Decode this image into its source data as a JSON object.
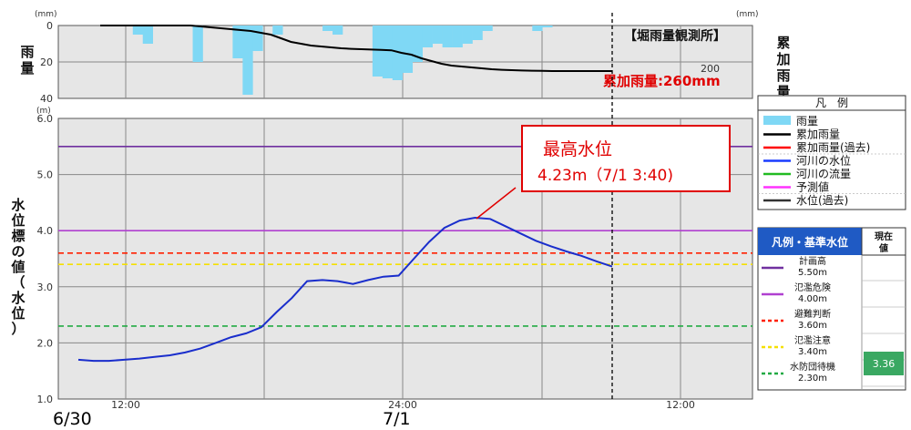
{
  "chart_data": [
    {
      "type": "bar",
      "name_jp": "rain",
      "ylabel": "雨量",
      "unit_left": "(mm)",
      "unit_right": "(mm)",
      "y2label": "累加雨量",
      "ylim": [
        0,
        40
      ],
      "y_ticks": [
        "0",
        "20",
        "40"
      ],
      "y2_ticks": [
        "200"
      ],
      "station": "【堀雨量観測所】",
      "cumulative_total": "累加雨量:260mm",
      "hourly_rain": [
        0,
        0,
        0,
        0,
        0,
        0,
        5,
        10,
        0,
        0,
        0,
        0,
        20,
        0,
        0,
        0,
        18,
        38,
        14,
        0,
        5,
        0,
        0,
        0,
        0,
        3,
        5,
        0,
        0,
        0,
        28,
        29,
        30,
        26,
        20,
        12,
        10,
        12,
        12,
        10,
        8,
        3,
        0,
        0,
        0,
        0,
        3,
        1,
        0,
        0,
        0,
        0,
        0,
        0
      ],
      "cumulative": [
        0,
        0,
        0,
        0,
        0,
        0,
        0,
        0,
        0,
        0,
        0.5,
        1,
        1.5,
        2,
        2.5,
        3,
        4,
        5,
        7,
        9,
        10,
        11,
        11.5,
        12,
        12.5,
        12.8,
        13,
        13.2,
        13.4,
        13.6,
        15,
        16,
        18,
        19.5,
        21,
        22,
        22.5,
        23,
        23.5,
        24,
        24.3,
        24.5,
        24.7,
        24.8,
        24.9,
        25,
        25,
        25,
        25,
        25,
        25,
        25
      ]
    },
    {
      "type": "line",
      "ylabel": "水位標の値（水位）",
      "unit": "(m)",
      "ylim": [
        1.0,
        6.0
      ],
      "y_ticks": [
        "1.0",
        "2.0",
        "3.0",
        "4.0",
        "5.0",
        "6.0"
      ],
      "x_ticks": [
        "12:00",
        "24:00",
        "12:00"
      ],
      "x_dates": [
        "6/30",
        "7/1"
      ],
      "water_level": [
        1.7,
        1.68,
        1.68,
        1.7,
        1.72,
        1.75,
        1.78,
        1.83,
        1.9,
        2.0,
        2.1,
        2.17,
        2.28,
        2.55,
        2.8,
        3.1,
        3.12,
        3.1,
        3.05,
        3.12,
        3.18,
        3.2,
        3.5,
        3.8,
        4.05,
        4.18,
        4.23,
        4.21,
        4.08,
        3.95,
        3.82,
        3.72,
        3.63,
        3.55,
        3.45,
        3.36
      ],
      "reference_levels": [
        {
          "label": "計画高",
          "value_label": "5.50m",
          "value": 5.5,
          "color": "#7030a0"
        },
        {
          "label": "氾濫危険",
          "value_label": "4.00m",
          "value": 4.0,
          "color": "#b040d0"
        },
        {
          "label": "避難判断",
          "value_label": "3.60m",
          "value": 3.6,
          "color": "#ff2000"
        },
        {
          "label": "氾濫注意",
          "value_label": "3.40m",
          "value": 3.4,
          "color": "#f5e000"
        },
        {
          "label": "水防団待機",
          "value_label": "2.30m",
          "value": 2.3,
          "color": "#22aa44"
        }
      ],
      "peak_title": "最高水位",
      "peak_value": "4.23m（7/1 3:40)",
      "current_value": "3.36"
    }
  ],
  "legend": {
    "title": "凡　例",
    "items": [
      {
        "label": "雨量",
        "color": "#7fd8f5",
        "style": "box"
      },
      {
        "label": "累加雨量",
        "color": "#000000",
        "style": "line"
      },
      {
        "label": "累加雨量(過去)",
        "color": "#ff0000",
        "style": "line"
      },
      {
        "label": "河川の水位",
        "color": "#1a3cff",
        "style": "line"
      },
      {
        "label": "河川の流量",
        "color": "#22bb22",
        "style": "line"
      },
      {
        "label": "予測値",
        "color": "#ff33ff",
        "style": "line"
      },
      {
        "label": "水位(過去)",
        "color": "#333333",
        "style": "line"
      }
    ]
  },
  "ref_table": {
    "header": "凡例・基準水位",
    "current_header": "現在値"
  },
  "colors": {
    "plot_bg": "#e6e6e6",
    "grid": "#888888",
    "rain_bar": "#7fd8f5",
    "cum_line": "#000000",
    "water_line": "#1a2ecc",
    "table_header": "#1f5ac4",
    "current_cell": "#3aa862"
  }
}
